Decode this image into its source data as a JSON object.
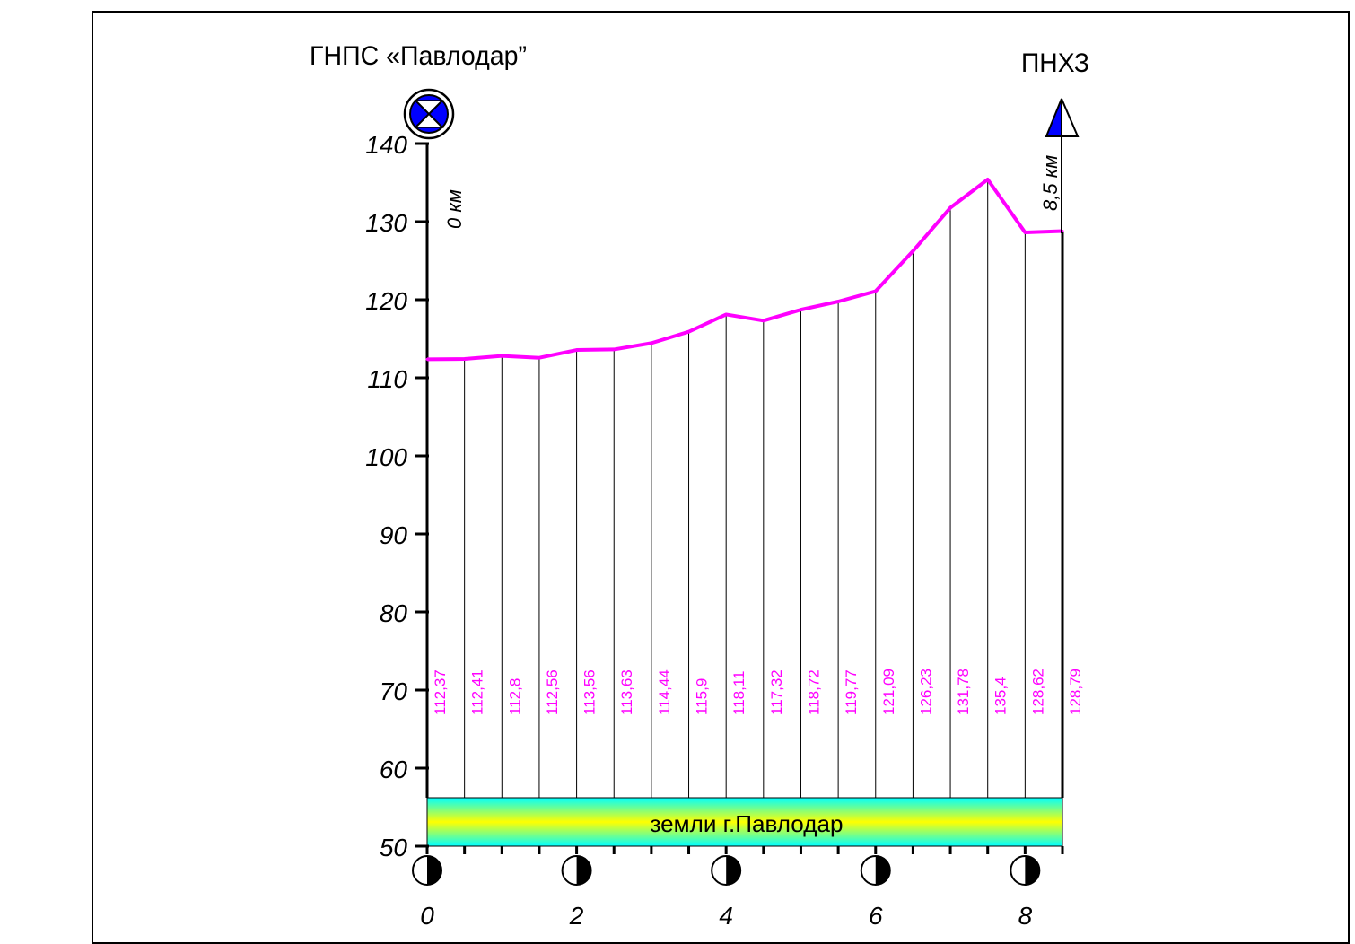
{
  "start_station": {
    "label": "ГНПС «Павлодар”",
    "km_label": "0 км"
  },
  "end_station": {
    "label": "ПНХЗ",
    "km_label": "8,5 км"
  },
  "band": {
    "label": "земли г.Павлодар",
    "top_color": "#00FFFF",
    "mid_color": "#FFFF00"
  },
  "colors": {
    "profile": "#FF00FF",
    "marker_blue": "#0000FF",
    "axis": "#000000"
  },
  "chart_data": {
    "type": "line",
    "title": "",
    "xlabel": "",
    "ylabel": "",
    "xlim": [
      0,
      8.5
    ],
    "ylim": [
      50,
      140
    ],
    "yticks": [
      50,
      60,
      70,
      80,
      90,
      100,
      110,
      120,
      130,
      140
    ],
    "xticks": [
      0,
      2,
      4,
      6,
      8
    ],
    "x": [
      0,
      0.5,
      1,
      1.5,
      2,
      2.5,
      3,
      3.5,
      4,
      4.5,
      5,
      5.5,
      6,
      6.5,
      7,
      7.5,
      8,
      8.5
    ],
    "series": [
      {
        "values": [
          112.37,
          112.41,
          112.8,
          112.56,
          113.56,
          113.63,
          114.44,
          115.9,
          118.11,
          117.32,
          118.72,
          119.77,
          121.09,
          126.23,
          131.78,
          135.4,
          128.62,
          128.79
        ]
      }
    ],
    "data_labels": [
      "112,37",
      "112,41",
      "112,8",
      "112,56",
      "113,56",
      "113,63",
      "114,44",
      "115,9",
      "118,11",
      "117,32",
      "118,72",
      "119,77",
      "121,09",
      "126,23",
      "131,78",
      "135,4",
      "128,62",
      "128,79"
    ],
    "grid": false
  }
}
